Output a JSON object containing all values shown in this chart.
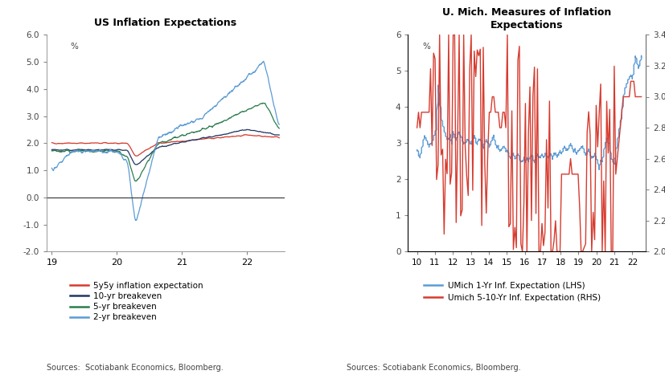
{
  "chart1": {
    "title": "US Inflation Expectations",
    "ylabel": "%",
    "ylim": [
      -2.0,
      6.0
    ],
    "yticks": [
      -2.0,
      -1.0,
      0.0,
      1.0,
      2.0,
      3.0,
      4.0,
      5.0,
      6.0
    ],
    "xticks": [
      19,
      20,
      21,
      22
    ],
    "xlim": [
      18.92,
      22.58
    ],
    "source": "Sources:  Scotiabank Economics, Bloomberg.",
    "legend": [
      {
        "label": "5y5y inflation expectation",
        "color": "#d63b2f"
      },
      {
        "label": "10-yr breakeven",
        "color": "#1f3864"
      },
      {
        "label": "5-yr breakeven",
        "color": "#2e7d4f"
      },
      {
        "label": "2-yr breakeven",
        "color": "#5b9bd5"
      }
    ]
  },
  "chart2": {
    "title": "U. Mich. Measures of Inflation\nExpectations",
    "ylabel_lhs": "%",
    "ylim_lhs": [
      0,
      6
    ],
    "yticks_lhs": [
      0,
      1,
      2,
      3,
      4,
      5,
      6
    ],
    "ylim_rhs": [
      2.0,
      3.4
    ],
    "yticks_rhs": [
      2.0,
      2.2,
      2.4,
      2.6,
      2.8,
      3.0,
      3.2,
      3.4
    ],
    "xticks": [
      10,
      11,
      12,
      13,
      14,
      15,
      16,
      17,
      18,
      19,
      20,
      21,
      22
    ],
    "xlim": [
      9.5,
      22.75
    ],
    "source": "Sources: Scotiabank Economics, Bloomberg.",
    "legend": [
      {
        "label": "UMich 1-Yr Inf. Expectation (LHS)",
        "color": "#5b9bd5"
      },
      {
        "label": "Umich 5-10-Yr Inf. Expectation (RHS)",
        "color": "#d63b2f"
      }
    ]
  }
}
